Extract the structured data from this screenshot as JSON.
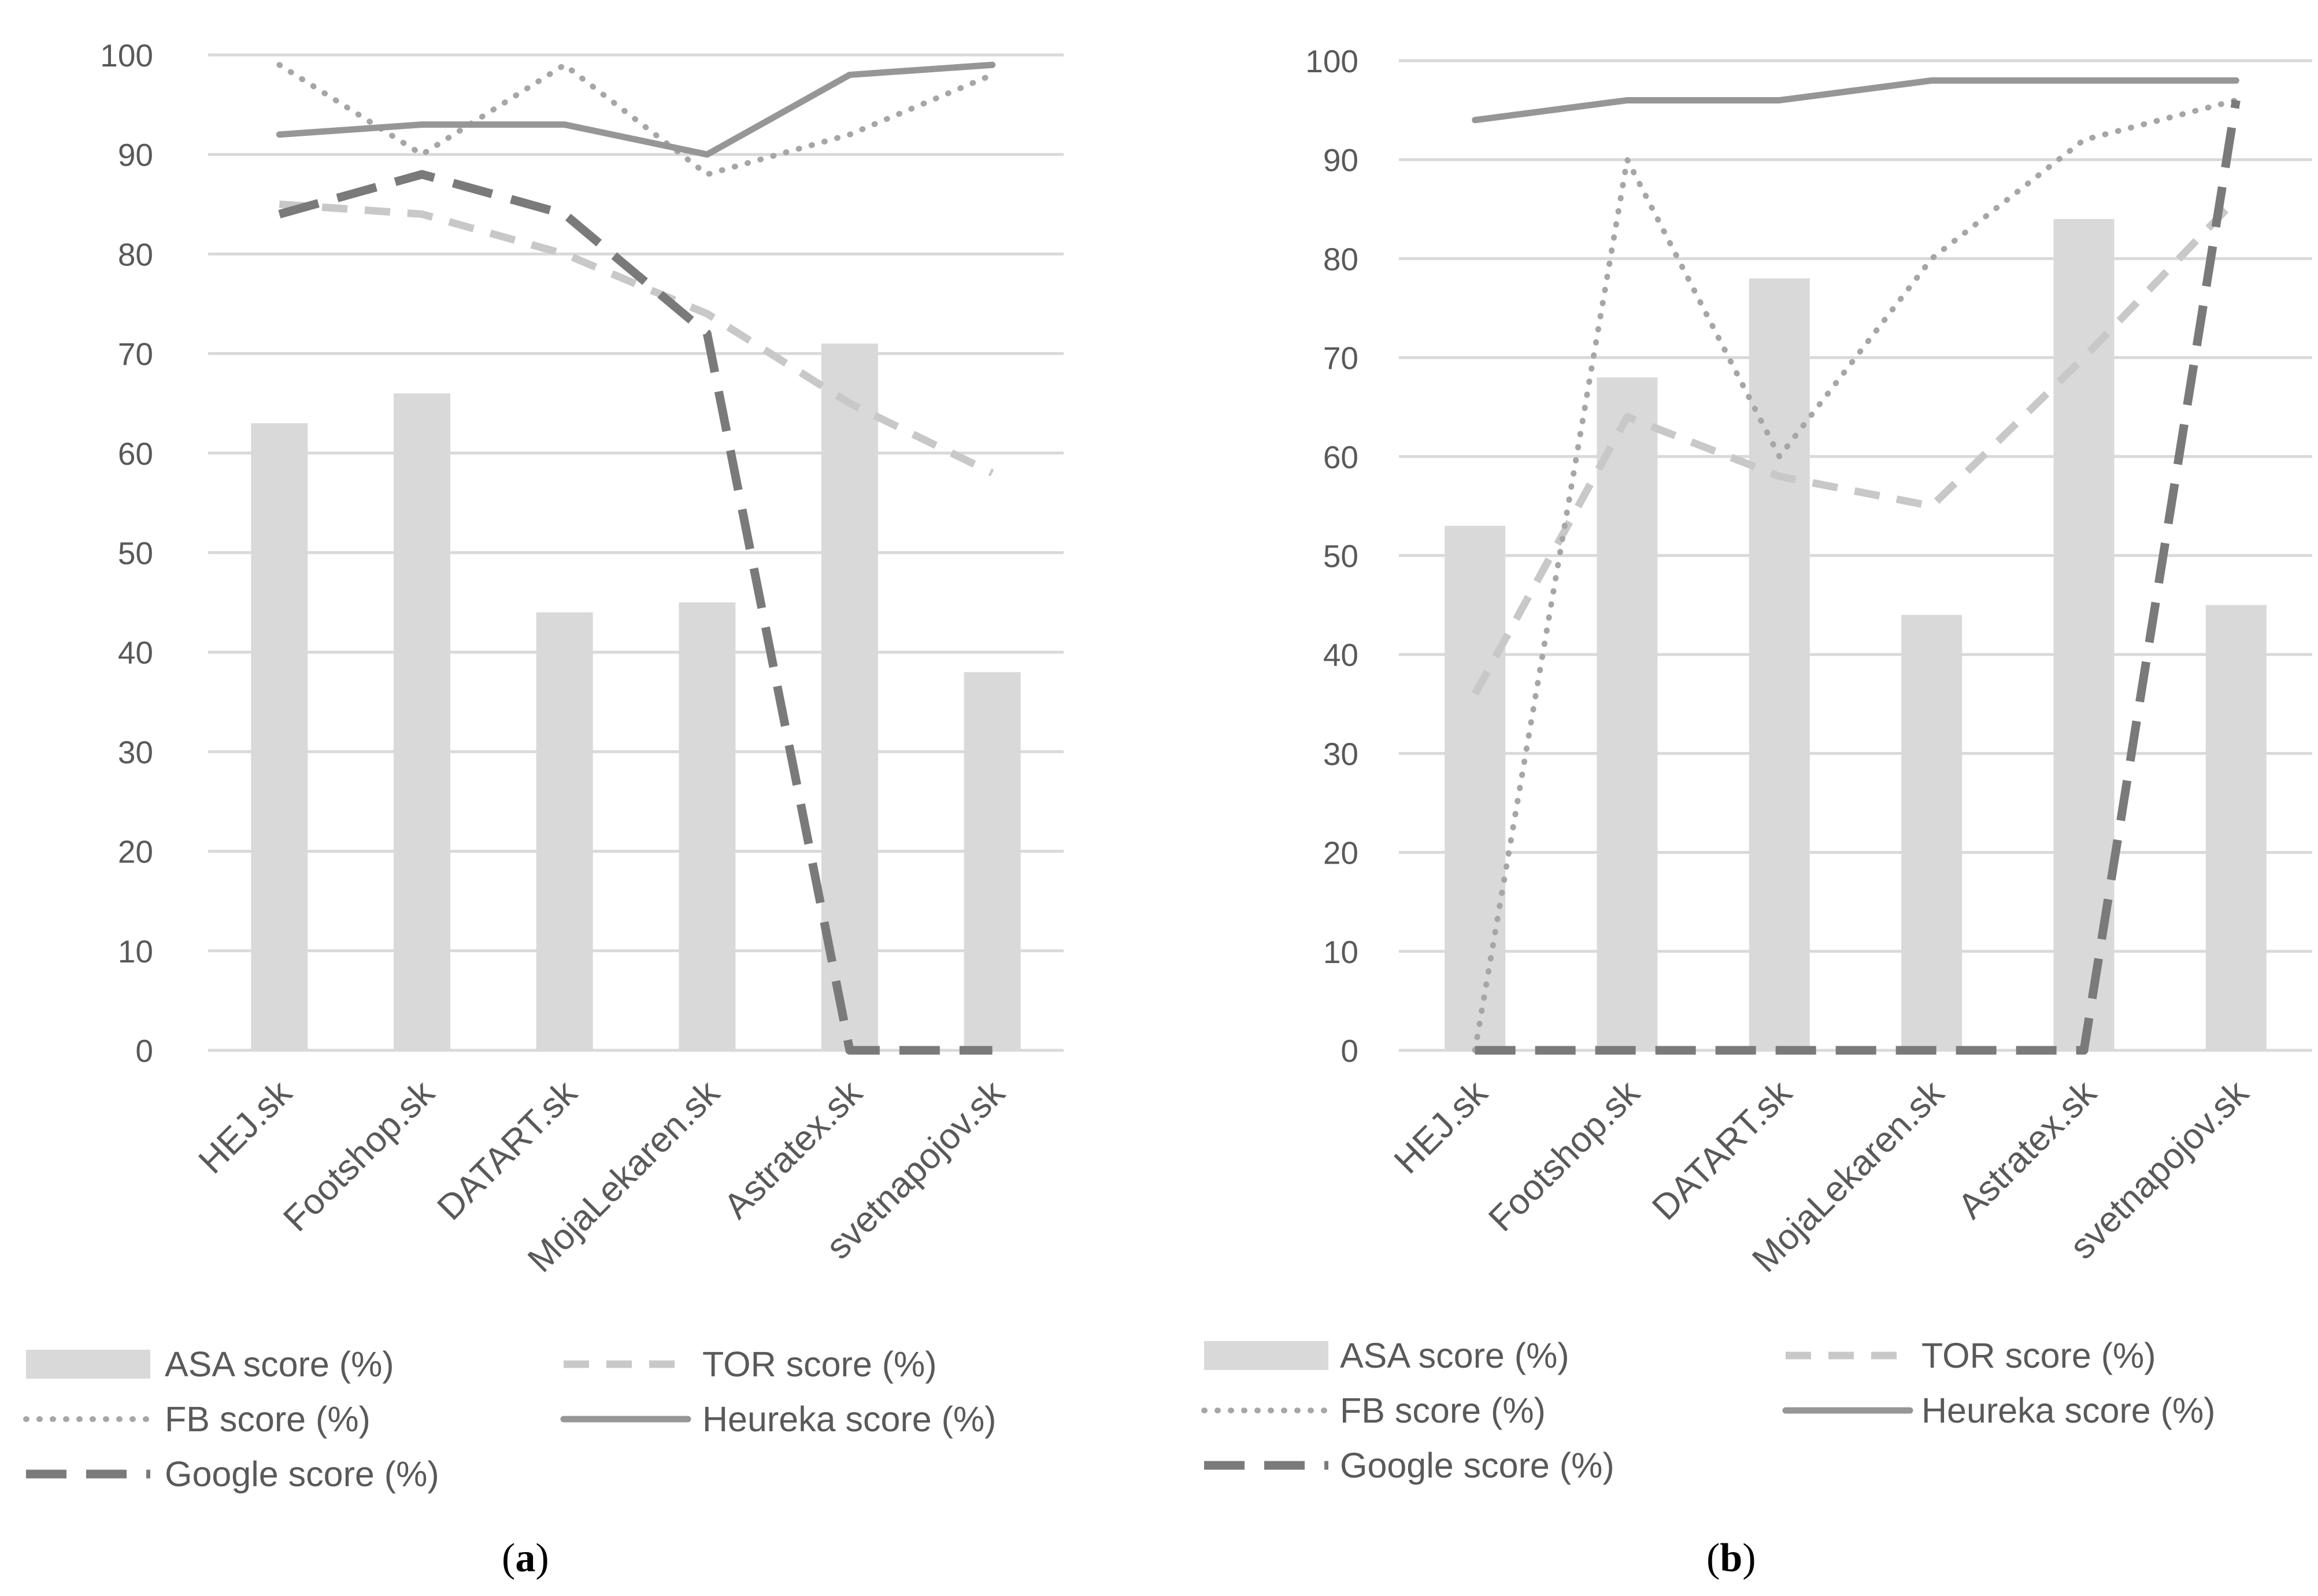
{
  "colors": {
    "asa": "#d9d9d9",
    "tor": "#c8c8c8",
    "fb": "#a6a6a6",
    "heureka": "#969696",
    "google": "#7a7a7a",
    "grid": "#d9d9d9",
    "text": "#595959"
  },
  "chart_data": [
    {
      "type": "bar+line",
      "panel": "a",
      "categories": [
        "HEJ.sk",
        "Footshop.sk",
        "DATART.sk",
        "MojaLekaren.sk",
        "Astratex.sk",
        "svetnapojov.sk"
      ],
      "ylim": [
        0,
        100
      ],
      "yticks": [
        "0",
        "10",
        "20",
        "30",
        "40",
        "50",
        "60",
        "70",
        "80",
        "90",
        "100"
      ],
      "grid": true,
      "series": [
        {
          "name": "ASA score (%)",
          "kind": "bar",
          "values": [
            63,
            66,
            44,
            45,
            71,
            38
          ]
        },
        {
          "name": "TOR score (%)",
          "kind": "line-dashed",
          "values": [
            85,
            84,
            80,
            74,
            65,
            58
          ]
        },
        {
          "name": "FB score (%)",
          "kind": "line-dotted",
          "values": [
            99,
            90,
            99,
            88,
            92,
            98
          ]
        },
        {
          "name": "Heureka score (%)",
          "kind": "line-solid",
          "values": [
            92,
            93,
            93,
            90,
            98,
            99
          ]
        },
        {
          "name": "Google score (%)",
          "kind": "line-longdash",
          "values": [
            84,
            88,
            84,
            72,
            0,
            0
          ]
        }
      ],
      "legend_position": "bottom",
      "label": "(a)",
      "label_letter": "a"
    },
    {
      "type": "bar+line",
      "panel": "b",
      "categories": [
        "HEJ.sk",
        "Footshop.sk",
        "DATART.sk",
        "MojaLekaren.sk",
        "Astratex.sk",
        "svetnapojov.sk"
      ],
      "ylim": [
        0,
        100
      ],
      "yticks": [
        "0",
        "10",
        "20",
        "30",
        "40",
        "50",
        "60",
        "70",
        "80",
        "90",
        "100"
      ],
      "grid": true,
      "series": [
        {
          "name": "ASA score (%)",
          "kind": "bar",
          "values": [
            53,
            68,
            78,
            44,
            84,
            45
          ]
        },
        {
          "name": "TOR score (%)",
          "kind": "line-dashed",
          "values": [
            36,
            64,
            58,
            55,
            70,
            86
          ]
        },
        {
          "name": "FB score (%)",
          "kind": "line-dotted",
          "values": [
            0,
            90,
            60,
            80,
            92,
            96
          ]
        },
        {
          "name": "Heureka score (%)",
          "kind": "line-solid",
          "values": [
            94,
            96,
            96,
            98,
            98,
            98
          ]
        },
        {
          "name": "Google score (%)",
          "kind": "line-longdash",
          "values": [
            0,
            0,
            0,
            0,
            0,
            96
          ]
        }
      ],
      "legend_position": "bottom",
      "label": "(b)",
      "label_letter": "b"
    }
  ]
}
